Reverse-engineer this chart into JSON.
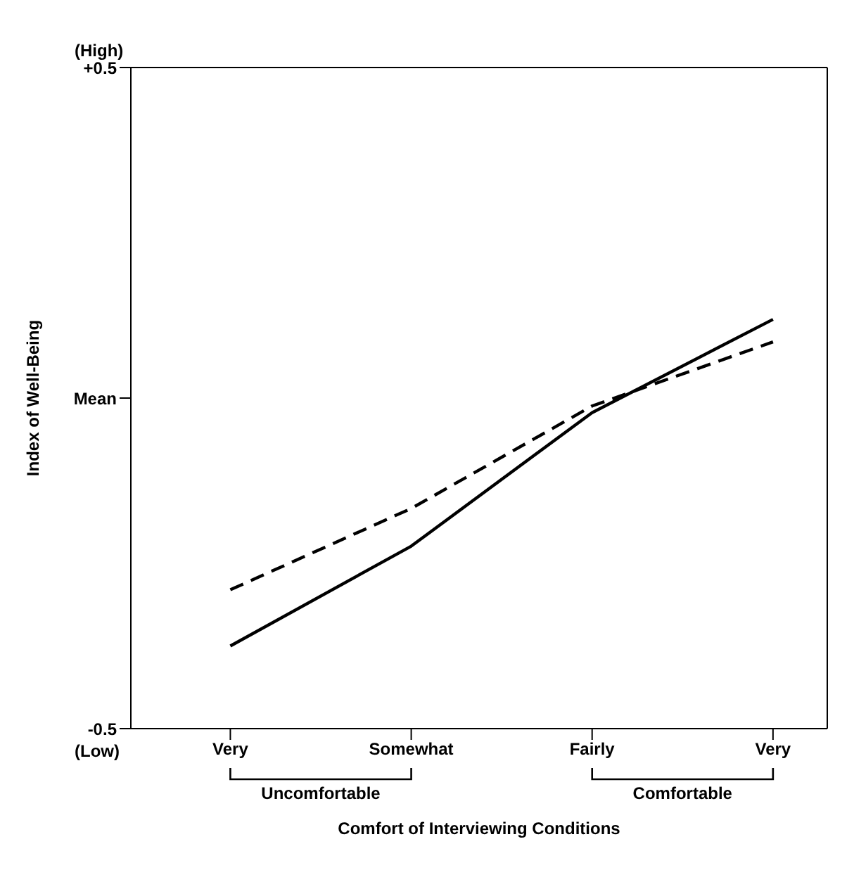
{
  "chart_data": {
    "type": "line",
    "xlabel": "Comfort of Interviewing Conditions",
    "ylabel": "Index of Well-Being",
    "categories": [
      "Very",
      "Somewhat",
      "Fairly",
      "Very"
    ],
    "series": [
      {
        "color": "#000000",
        "line_style": "solid",
        "values": [
          -0.375,
          -0.224,
          -0.022,
          0.119
        ]
      },
      {
        "color": "#000000",
        "line_style": "dashed",
        "values": [
          -0.29,
          -0.167,
          -0.012,
          0.085
        ]
      }
    ],
    "ylim": [
      -0.5,
      0.5
    ],
    "yticks": [
      {
        "value": -0.5,
        "label": "-0.5"
      },
      {
        "value": 0,
        "label": "Mean"
      },
      {
        "value": 0.5,
        "label": "+0.5"
      }
    ],
    "annotations": [
      "(High)",
      "(Low)",
      "Uncomfortable",
      "Comfortable"
    ],
    "grid": false,
    "marker": "none"
  }
}
